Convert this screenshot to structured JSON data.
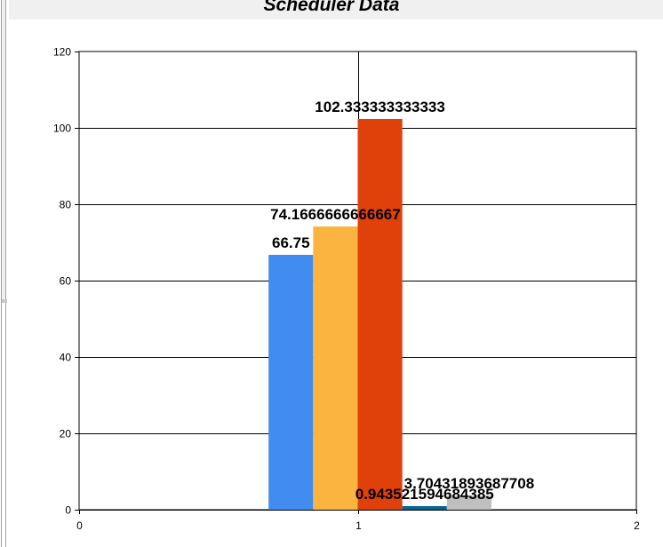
{
  "chart_data": {
    "type": "bar",
    "title": "Scheduler Data",
    "xlabel": "",
    "ylabel": "",
    "xlim": [
      0,
      2
    ],
    "ylim": [
      0,
      120
    ],
    "x_ticks": [
      0,
      1,
      2
    ],
    "y_ticks": [
      0,
      20,
      40,
      60,
      80,
      100,
      120
    ],
    "grid": true,
    "legend": "none",
    "bar_width": 0.16,
    "bars": [
      {
        "x": 0.76,
        "value": 66.75,
        "label": "66.75",
        "color": "#418cf0"
      },
      {
        "x": 0.92,
        "value": 74.1666666666667,
        "label": "74.1666666666667",
        "color": "#fcb441"
      },
      {
        "x": 1.08,
        "value": 102.333333333333,
        "label": "102.333333333333",
        "color": "#e0400a"
      },
      {
        "x": 1.24,
        "value": 0.943521594684385,
        "label": "0.943521594684385",
        "color": "#056492"
      },
      {
        "x": 1.4,
        "value": 3.70431893687708,
        "label": "3.70431893687708",
        "color": "#bfbfbf"
      }
    ]
  }
}
